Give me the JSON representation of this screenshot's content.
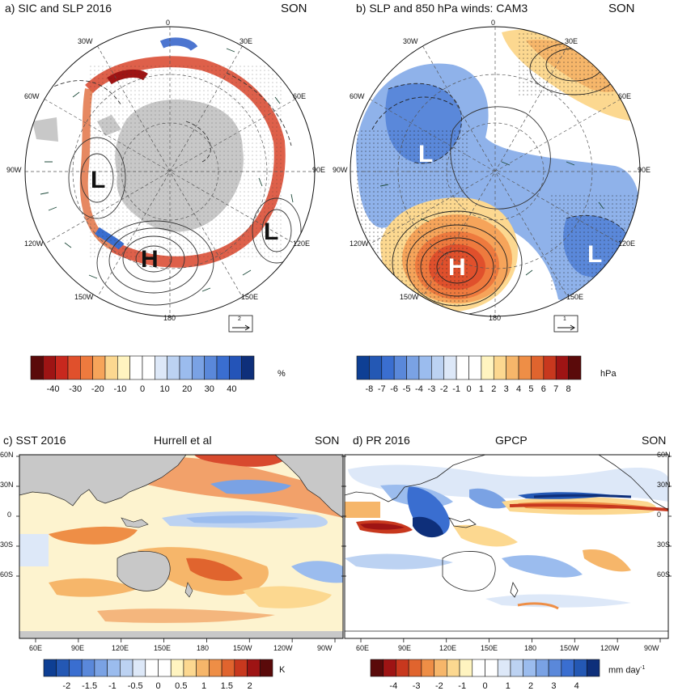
{
  "panel_a": {
    "title": "a) SIC and SLP 2016",
    "season": "SON",
    "lon_labels": [
      "0",
      "30E",
      "60E",
      "90E",
      "120E",
      "150E",
      "180",
      "150W",
      "120W",
      "90W",
      "60W",
      "30W"
    ],
    "centers": [
      {
        "text": "L",
        "lon": "90W"
      },
      {
        "text": "L",
        "lon": "120E"
      },
      {
        "text": "H",
        "lon": "150W"
      }
    ],
    "ref_vector": "2",
    "colorbar": {
      "ticks": [
        "-40",
        "-30",
        "-20",
        "-10",
        "0",
        "10",
        "20",
        "30",
        "40"
      ],
      "unit": "%",
      "colors": [
        "#5a0a0a",
        "#9e1414",
        "#c8281e",
        "#e0502c",
        "#ee7a3e",
        "#f6a45a",
        "#fcd890",
        "#fff4c0",
        "#ffffff",
        "#ffffff",
        "#dde8f8",
        "#bcd2f2",
        "#9bbcee",
        "#7aa2e4",
        "#5a88da",
        "#3a6ed0",
        "#2454b8",
        "#0e2f7a"
      ]
    }
  },
  "panel_b": {
    "title": "b) SLP and 850 hPa winds: CAM3",
    "season": "SON",
    "lon_labels": [
      "0",
      "30E",
      "60E",
      "90E",
      "120E",
      "150E",
      "180",
      "150W",
      "120W",
      "90W",
      "60W",
      "30W"
    ],
    "centers": [
      {
        "text": "L",
        "lon": "90W"
      },
      {
        "text": "L",
        "lon": "120E"
      },
      {
        "text": "H",
        "lon": "150W"
      }
    ],
    "ref_vector": "1",
    "colorbar": {
      "ticks": [
        "-8",
        "-7",
        "-6",
        "-5",
        "-4",
        "-3",
        "-2",
        "-1",
        "0",
        "1",
        "2",
        "3",
        "4",
        "5",
        "6",
        "7",
        "8"
      ],
      "unit": "hPa",
      "colors": [
        "#0e3f94",
        "#2458b4",
        "#3a6ed0",
        "#5a88da",
        "#7aa2e4",
        "#9bbcee",
        "#bcd2f2",
        "#dde8f8",
        "#ffffff",
        "#ffffff",
        "#fff4c0",
        "#fcd890",
        "#f6b66a",
        "#ee8e46",
        "#e0642e",
        "#c8381e",
        "#9e1414",
        "#5a0a0a"
      ]
    }
  },
  "panel_c": {
    "title": "c) SST 2016",
    "source": "Hurrell et al",
    "season": "SON",
    "lat_labels": [
      "60N",
      "30N",
      "0",
      "30S",
      "60S"
    ],
    "lon_labels": [
      "60E",
      "90E",
      "120E",
      "150E",
      "180",
      "150W",
      "120W",
      "90W"
    ],
    "colorbar": {
      "ticks": [
        "-2",
        "-1.5",
        "-1",
        "-0.5",
        "0",
        "0.5",
        "1",
        "1.5",
        "2"
      ],
      "unit": "K",
      "colors": [
        "#0e3f94",
        "#2458b4",
        "#3a6ed0",
        "#5a88da",
        "#7aa2e4",
        "#9bbcee",
        "#bcd2f2",
        "#dde8f8",
        "#ffffff",
        "#ffffff",
        "#fff4c0",
        "#fcd890",
        "#f6b66a",
        "#ee8e46",
        "#e0642e",
        "#c8381e",
        "#9e1414",
        "#5a0a0a"
      ]
    }
  },
  "panel_d": {
    "title": "d) PR 2016",
    "source": "GPCP",
    "season": "SON",
    "lat_labels": [
      "60N",
      "30N",
      "0",
      "30S",
      "60S"
    ],
    "lon_labels": [
      "60E",
      "90E",
      "120E",
      "150E",
      "180",
      "150W",
      "120W",
      "90W"
    ],
    "colorbar": {
      "ticks": [
        "-4",
        "-3",
        "-2",
        "-1",
        "0",
        "1",
        "2",
        "3",
        "4"
      ],
      "unit": "mm day",
      "unit_sup": "-1",
      "colors": [
        "#5a0a0a",
        "#9e1414",
        "#c8381e",
        "#e0642e",
        "#ee8e46",
        "#f6b66a",
        "#fcd890",
        "#fff4c0",
        "#ffffff",
        "#ffffff",
        "#dde8f8",
        "#bcd2f2",
        "#9bbcee",
        "#7aa2e4",
        "#5a88da",
        "#3a6ed0",
        "#2458b4",
        "#0e2f7a"
      ]
    }
  }
}
